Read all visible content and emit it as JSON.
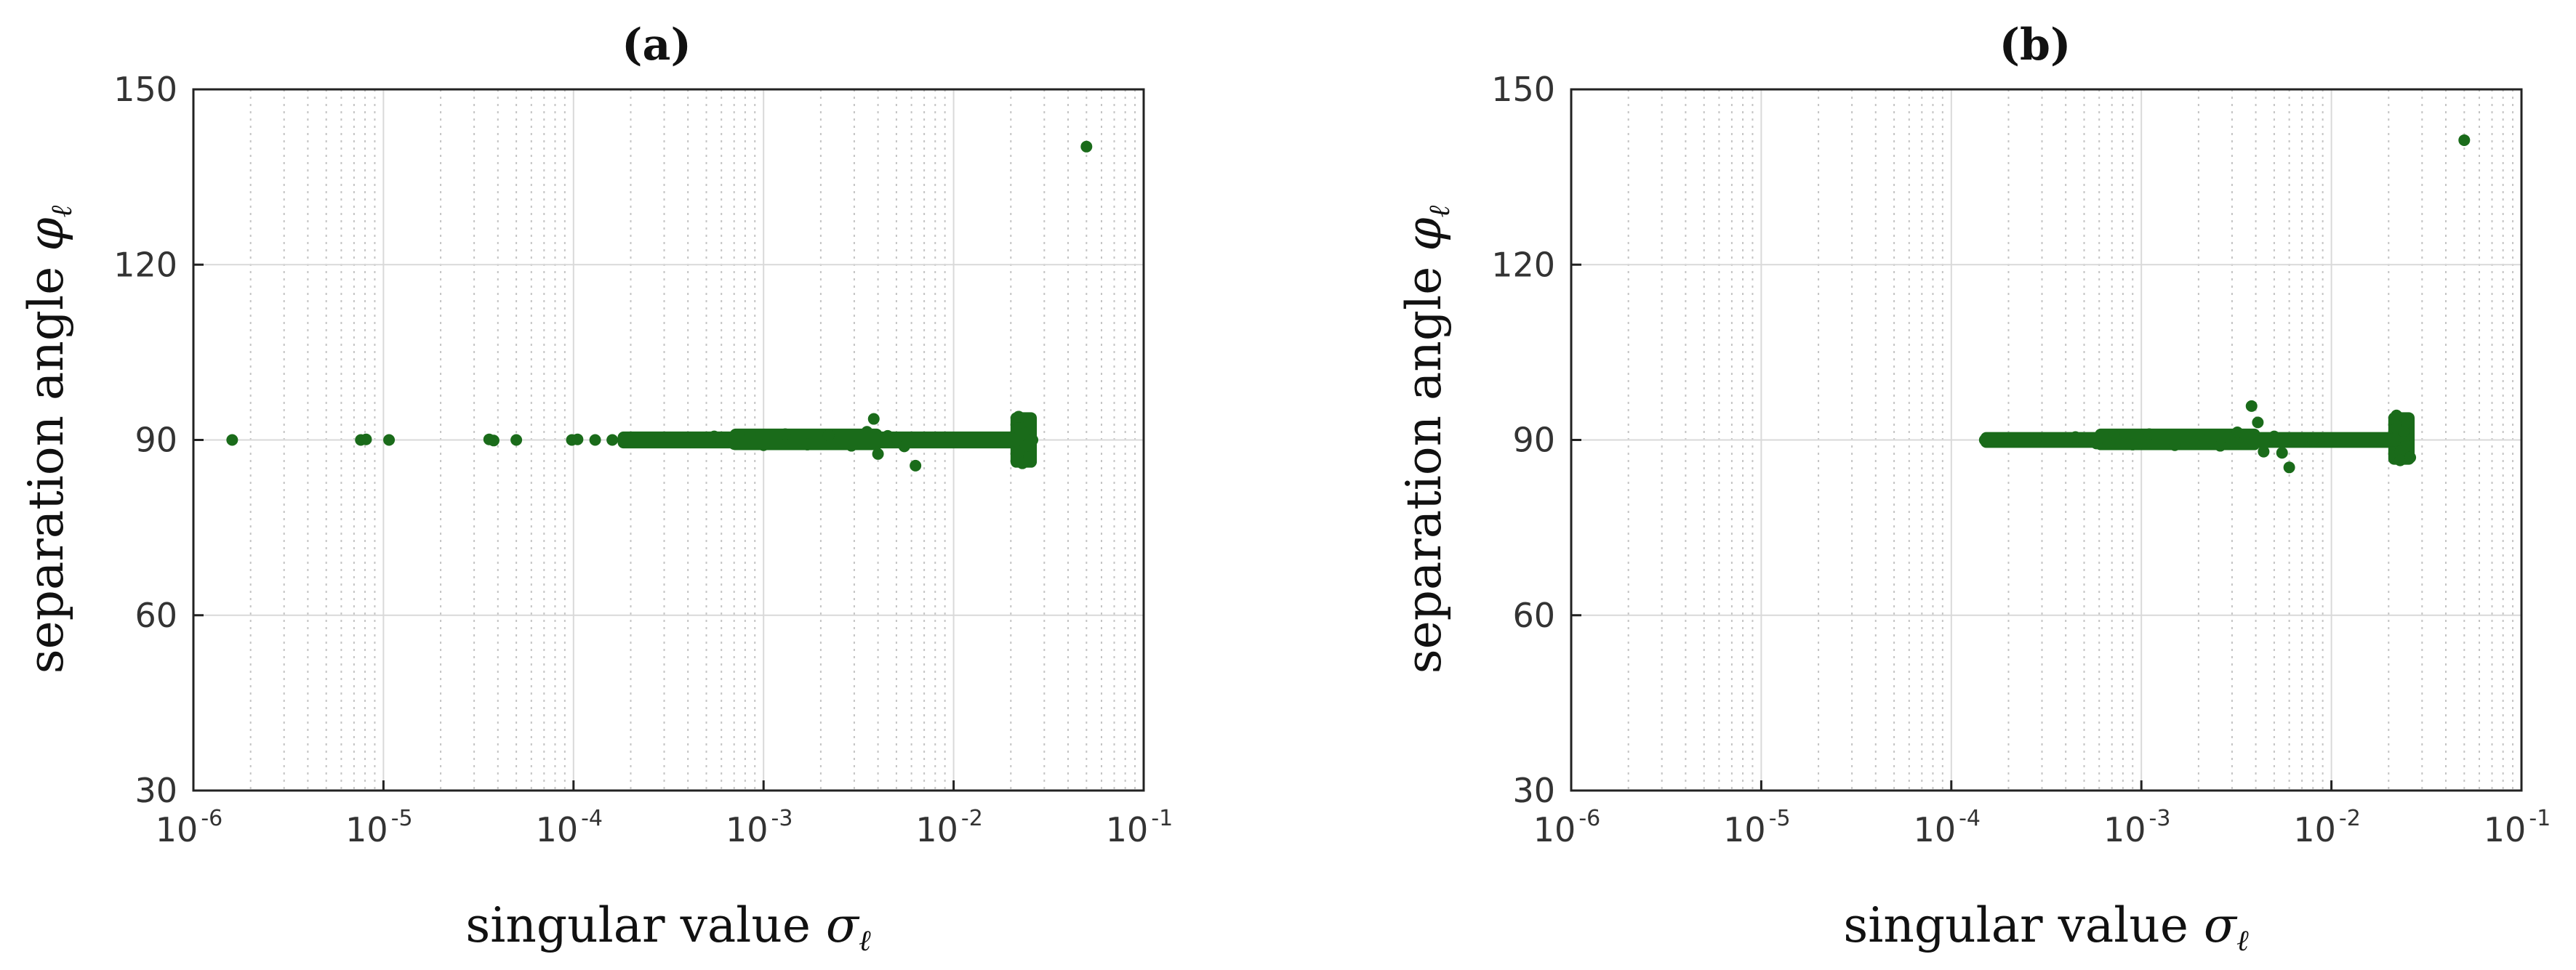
{
  "chart_data": [
    {
      "type": "scatter",
      "title": "(a)",
      "xlabel": "singular value",
      "xlabel_symbol": "σ",
      "xlabel_subscript": "ℓ",
      "ylabel": "separation angle",
      "ylabel_symbol": "φ",
      "ylabel_subscript": "ℓ",
      "xscale": "log",
      "xlim": [
        1e-06,
        0.1
      ],
      "ylim": [
        30,
        150
      ],
      "x_ticks": [
        {
          "base": "10",
          "exp": "-6",
          "value": 1e-06
        },
        {
          "base": "10",
          "exp": "-5",
          "value": 1e-05
        },
        {
          "base": "10",
          "exp": "-4",
          "value": 0.0001
        },
        {
          "base": "10",
          "exp": "-3",
          "value": 0.001
        },
        {
          "base": "10",
          "exp": "-2",
          "value": 0.01
        },
        {
          "base": "10",
          "exp": "-1",
          "value": 0.1
        }
      ],
      "y_ticks": [
        "30",
        "60",
        "90",
        "120",
        "150"
      ],
      "grid": true,
      "marker_color": "#1a6b1a",
      "points": [
        [
          1.6e-06,
          90.0
        ],
        [
          7.6e-06,
          90.0
        ],
        [
          8.1e-06,
          90.1
        ],
        [
          1.07e-05,
          90.0
        ],
        [
          3.6e-05,
          90.1
        ],
        [
          3.8e-05,
          89.9
        ],
        [
          5e-05,
          90.0
        ],
        [
          9.8e-05,
          90.0
        ],
        [
          0.000105,
          90.1
        ],
        [
          0.00013,
          90.0
        ],
        [
          0.00016,
          90.0
        ],
        [
          0.0002,
          90.2
        ],
        [
          0.00026,
          89.7
        ],
        [
          0.00033,
          90.4
        ],
        [
          0.00042,
          89.6
        ],
        [
          0.00055,
          90.6
        ],
        [
          0.0007,
          89.3
        ],
        [
          0.00085,
          90.9
        ],
        [
          0.001,
          89.1
        ],
        [
          0.0013,
          91.0
        ],
        [
          0.0017,
          89.2
        ],
        [
          0.0022,
          90.8
        ],
        [
          0.0029,
          89.0
        ],
        [
          0.0035,
          91.4
        ],
        [
          0.0038,
          93.6
        ],
        [
          0.004,
          87.6
        ],
        [
          0.0045,
          90.7
        ],
        [
          0.0055,
          88.9
        ],
        [
          0.0063,
          85.6
        ],
        [
          0.0075,
          90.0
        ],
        [
          0.01,
          90.0
        ],
        [
          0.014,
          90.0
        ],
        [
          0.019,
          90.0
        ],
        [
          0.022,
          94.0
        ],
        [
          0.022,
          92.0
        ],
        [
          0.022,
          88.0
        ],
        [
          0.023,
          86.0
        ],
        [
          0.023,
          91.0
        ],
        [
          0.024,
          89.0
        ],
        [
          0.025,
          93.0
        ],
        [
          0.025,
          87.0
        ],
        [
          0.026,
          90.0
        ],
        [
          0.05,
          140.2
        ]
      ],
      "bands": [
        {
          "x_from": 0.00018,
          "x_to": 0.022,
          "y_low": 89.3,
          "y_high": 90.7
        },
        {
          "x_from": 0.0007,
          "x_to": 0.004,
          "y_low": 89.0,
          "y_high": 91.2
        },
        {
          "x_from": 0.021,
          "x_to": 0.026,
          "y_low": 86.0,
          "y_high": 94.0
        },
        {
          "x_from": 0.005,
          "x_to": 0.022,
          "y_low": 89.6,
          "y_high": 90.4
        }
      ]
    },
    {
      "type": "scatter",
      "title": "(b)",
      "xlabel": "singular value",
      "xlabel_symbol": "σ",
      "xlabel_subscript": "ℓ",
      "ylabel": "separation angle",
      "ylabel_symbol": "φ",
      "ylabel_subscript": "ℓ",
      "xscale": "log",
      "xlim": [
        1e-06,
        0.1
      ],
      "ylim": [
        30,
        150
      ],
      "x_ticks": [
        {
          "base": "10",
          "exp": "-6",
          "value": 1e-06
        },
        {
          "base": "10",
          "exp": "-5",
          "value": 1e-05
        },
        {
          "base": "10",
          "exp": "-4",
          "value": 0.0001
        },
        {
          "base": "10",
          "exp": "-3",
          "value": 0.001
        },
        {
          "base": "10",
          "exp": "-2",
          "value": 0.01
        },
        {
          "base": "10",
          "exp": "-1",
          "value": 0.1
        }
      ],
      "y_ticks": [
        "30",
        "60",
        "90",
        "120",
        "150"
      ],
      "grid": true,
      "marker_color": "#1a6b1a",
      "points": [
        [
          0.00015,
          90.0
        ],
        [
          0.00018,
          90.1
        ],
        [
          0.00022,
          89.9
        ],
        [
          0.00028,
          90.3
        ],
        [
          0.00035,
          89.7
        ],
        [
          0.00045,
          90.5
        ],
        [
          0.00058,
          89.4
        ],
        [
          0.00072,
          90.8
        ],
        [
          0.0009,
          89.2
        ],
        [
          0.0011,
          91.0
        ],
        [
          0.0015,
          89.1
        ],
        [
          0.002,
          90.9
        ],
        [
          0.0026,
          89.0
        ],
        [
          0.0032,
          91.3
        ],
        [
          0.0038,
          95.8
        ],
        [
          0.0041,
          93.0
        ],
        [
          0.0044,
          88.0
        ],
        [
          0.005,
          90.6
        ],
        [
          0.0055,
          87.8
        ],
        [
          0.006,
          85.3
        ],
        [
          0.008,
          90.0
        ],
        [
          0.012,
          90.0
        ],
        [
          0.017,
          90.0
        ],
        [
          0.022,
          94.2
        ],
        [
          0.022,
          92.0
        ],
        [
          0.023,
          88.0
        ],
        [
          0.023,
          86.5
        ],
        [
          0.024,
          91.5
        ],
        [
          0.025,
          89.0
        ],
        [
          0.025,
          93.0
        ],
        [
          0.026,
          87.0
        ],
        [
          0.05,
          141.3
        ]
      ],
      "bands": [
        {
          "x_from": 0.00015,
          "x_to": 0.022,
          "y_low": 89.4,
          "y_high": 90.6
        },
        {
          "x_from": 0.0006,
          "x_to": 0.004,
          "y_low": 89.0,
          "y_high": 91.2
        },
        {
          "x_from": 0.021,
          "x_to": 0.026,
          "y_low": 86.5,
          "y_high": 94.0
        },
        {
          "x_from": 0.005,
          "x_to": 0.022,
          "y_low": 89.6,
          "y_high": 90.4
        }
      ]
    }
  ]
}
